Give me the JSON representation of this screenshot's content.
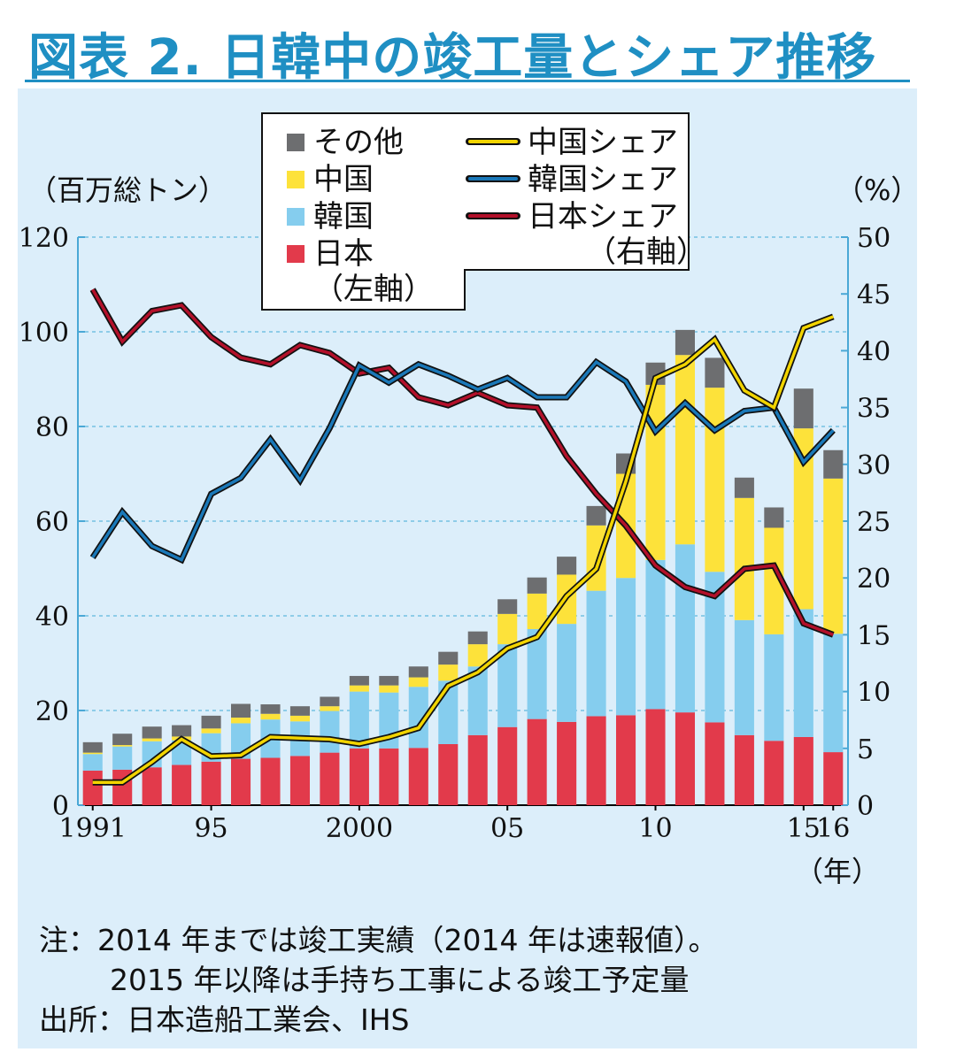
{
  "title": "図表 2. 日韓中の竣工量とシェア推移",
  "colors": {
    "panel_bg": "#dceefa",
    "other": "#6d6e70",
    "china": "#fde23a",
    "korea": "#85cdee",
    "japan": "#e23a4b",
    "china_share_line": "#f2d400",
    "korea_share_line": "#1a78b8",
    "japan_share_line": "#b3102a",
    "title": "#1f8fc3"
  },
  "chart_data": {
    "type": "bar",
    "stacked": true,
    "years": [
      1991,
      1992,
      1993,
      1994,
      1995,
      1996,
      1997,
      1998,
      1999,
      2000,
      2001,
      2002,
      2003,
      2004,
      2005,
      2006,
      2007,
      2008,
      2009,
      2010,
      2011,
      2012,
      2013,
      2014,
      2015,
      2016
    ],
    "x_tick_labels": [
      "1991",
      "95",
      "2000",
      "05",
      "10",
      "15",
      "16"
    ],
    "x_tick_years": [
      1991,
      1995,
      2000,
      2005,
      2010,
      2015,
      2016
    ],
    "x_unit": "（年）",
    "y_left": {
      "unit": "（百万総トン）",
      "ylim": [
        0,
        120
      ],
      "ticks": [
        "0",
        "20",
        "40",
        "60",
        "80",
        "100",
        "120"
      ]
    },
    "y_right": {
      "unit": "（%）",
      "ylim": [
        0,
        50
      ],
      "ticks": [
        "0",
        "5",
        "10",
        "15",
        "20",
        "25",
        "30",
        "35",
        "40",
        "45",
        "50"
      ]
    },
    "bar_series": [
      {
        "name": "日本",
        "key": "japan",
        "values": [
          7.3,
          7.5,
          8.0,
          8.5,
          9.2,
          9.8,
          10.0,
          10.4,
          11.1,
          12.0,
          12.0,
          12.1,
          12.9,
          14.8,
          16.5,
          18.2,
          17.6,
          18.8,
          19.0,
          20.3,
          19.6,
          17.5,
          14.8,
          13.6,
          14.4,
          11.2
        ]
      },
      {
        "name": "韓国",
        "key": "korea",
        "values": [
          3.5,
          4.9,
          5.5,
          5.2,
          6.0,
          7.5,
          8.1,
          7.3,
          8.8,
          12.0,
          11.8,
          12.9,
          13.4,
          14.5,
          17.5,
          19.0,
          20.7,
          26.5,
          29.0,
          31.5,
          35.5,
          31.8,
          24.3,
          22.5,
          27.0,
          25.0
        ]
      },
      {
        "name": "中国",
        "key": "china",
        "values": [
          0.3,
          0.3,
          0.6,
          0.8,
          1.0,
          1.2,
          1.2,
          1.2,
          1.0,
          1.3,
          1.5,
          2.0,
          3.4,
          4.7,
          6.4,
          7.5,
          10.4,
          13.8,
          22.0,
          37.0,
          40.0,
          38.9,
          25.8,
          22.5,
          38.2,
          32.8
        ]
      },
      {
        "name": "その他",
        "key": "other",
        "values": [
          2.2,
          2.4,
          2.5,
          2.4,
          2.7,
          2.9,
          2.0,
          2.0,
          2.0,
          2.0,
          2.0,
          2.3,
          2.7,
          2.7,
          3.1,
          3.4,
          3.8,
          4.1,
          4.3,
          4.7,
          5.3,
          6.3,
          4.3,
          4.3,
          8.4,
          6.0
        ]
      }
    ],
    "line_series": [
      {
        "name": "中国シェア",
        "key": "china_share",
        "values": [
          2.0,
          2.0,
          3.8,
          5.8,
          4.3,
          4.4,
          6.0,
          5.9,
          5.8,
          5.4,
          6.0,
          6.8,
          10.5,
          11.7,
          13.8,
          14.8,
          18.4,
          20.8,
          28.5,
          37.6,
          38.8,
          41.0,
          36.5,
          35.0,
          42.0,
          43.0
        ]
      },
      {
        "name": "韓国シェア",
        "key": "korea_share",
        "values": [
          21.8,
          25.8,
          22.8,
          21.6,
          27.4,
          28.8,
          32.2,
          28.6,
          33.2,
          38.7,
          37.2,
          38.8,
          37.8,
          36.6,
          37.6,
          35.9,
          35.9,
          39.0,
          37.3,
          32.9,
          35.4,
          33.0,
          34.7,
          35.0,
          30.2,
          33.0
        ]
      },
      {
        "name": "日本シェア",
        "key": "japan_share",
        "values": [
          45.4,
          40.8,
          43.5,
          44.0,
          41.2,
          39.4,
          38.8,
          40.5,
          39.8,
          38.0,
          38.5,
          35.9,
          35.2,
          36.3,
          35.2,
          35.0,
          30.7,
          27.4,
          24.6,
          21.1,
          19.2,
          18.4,
          20.8,
          21.1,
          16.0,
          15.0
        ]
      }
    ],
    "legend": {
      "bars": [
        "その他",
        "中国",
        "韓国",
        "日本"
      ],
      "bars_note": "（左軸）",
      "lines": [
        "中国シェア",
        "韓国シェア",
        "日本シェア"
      ],
      "lines_note": "（右軸）",
      "placement": "top-left"
    },
    "grid": "dashed horizontal"
  },
  "notes": {
    "line1": "注：2014 年までは竣工実績（2014 年は速報値）。",
    "line2": "2015 年以降は手持ち工事による竣工予定量",
    "source": "出所：日本造船工業会、IHS"
  }
}
